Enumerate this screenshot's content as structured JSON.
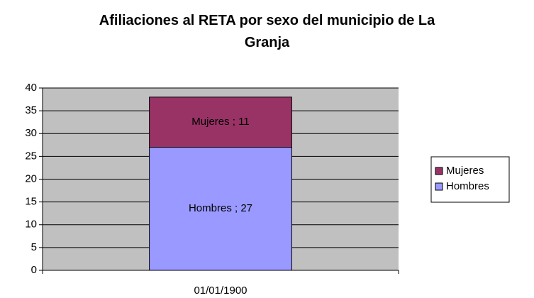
{
  "chart_data": {
    "type": "stacked_bar",
    "title": "Afiliaciones al RETA por sexo del municipio de La Granja",
    "categories": [
      "01/01/1900"
    ],
    "series": [
      {
        "name": "Hombres",
        "color": "#9999ff",
        "values": [
          27
        ],
        "value_labels": [
          "Hombres ; 27"
        ]
      },
      {
        "name": "Mujeres",
        "color": "#993366",
        "values": [
          11
        ],
        "value_labels": [
          "Mujeres ; 11"
        ]
      }
    ],
    "ylim": [
      0,
      40
    ],
    "yticks": [
      0,
      5,
      10,
      15,
      20,
      25,
      30,
      35,
      40
    ],
    "grid": true,
    "legend": "right"
  }
}
